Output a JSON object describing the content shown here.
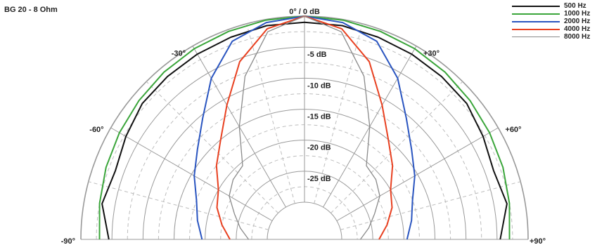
{
  "chart_data": {
    "type": "polar",
    "title": "BG 20 - 8 Ohm",
    "radial_ticks": [
      "0° / 0 dB",
      "-5 dB",
      "-10 dB",
      "-15 dB",
      "-20 dB",
      "-25 dB"
    ],
    "radial_values": [
      0,
      -5,
      -10,
      -15,
      -20,
      -25
    ],
    "rlim": [
      -30,
      0
    ],
    "angle_ticks": [
      {
        "label": "-90°",
        "angle": -90
      },
      {
        "label": "-60°",
        "angle": -60
      },
      {
        "label": "-30°",
        "angle": -30
      },
      {
        "label": "+30°",
        "angle": 30
      },
      {
        "label": "+60°",
        "angle": 60
      },
      {
        "label": "+90°",
        "angle": 90
      }
    ],
    "theta_range": [
      -90,
      90
    ],
    "grid": true,
    "legend_position": "top-right",
    "series": [
      {
        "name": "500 Hz",
        "color": "#111111",
        "angles": [
          0,
          10,
          20,
          30,
          40,
          50,
          60,
          70,
          80,
          90
        ],
        "db": [
          -1,
          -1,
          -1.3,
          -1.5,
          -1.7,
          -1.9,
          -2.8,
          -3.6,
          -2.9,
          -4.5
        ]
      },
      {
        "name": "1000 Hz",
        "color": "#3aa53a",
        "angles": [
          0,
          10,
          20,
          30,
          40,
          50,
          60,
          70,
          80,
          90
        ],
        "db": [
          0,
          -0.1,
          -0.3,
          -0.5,
          -0.8,
          -1.2,
          -1.6,
          -2.0,
          -2.5,
          -3.0
        ]
      },
      {
        "name": "2000 Hz",
        "color": "#2a55c0",
        "angles": [
          0,
          10,
          20,
          30,
          40,
          50,
          60,
          70,
          80,
          90
        ],
        "db": [
          0,
          -0.5,
          -2,
          -6,
          -10.5,
          -13.5,
          -15.5,
          -17.5,
          -18.5,
          -19.5
        ]
      },
      {
        "name": "4000 Hz",
        "color": "#e84020",
        "angles": [
          0,
          10,
          20,
          30,
          40,
          50,
          60,
          70,
          80,
          90
        ],
        "db": [
          0,
          -1.5,
          -5.5,
          -11,
          -15,
          -17.5,
          -20,
          -21,
          -22.5,
          -24
        ]
      },
      {
        "name": "8000 Hz",
        "color": "#8a8a8a",
        "angles": [
          0,
          10,
          20,
          30,
          40,
          50,
          60,
          70,
          80,
          90
        ],
        "db": [
          0,
          -2,
          -8,
          -15,
          -20.5,
          -21,
          -22,
          -24,
          -25.5,
          -27
        ]
      }
    ]
  }
}
